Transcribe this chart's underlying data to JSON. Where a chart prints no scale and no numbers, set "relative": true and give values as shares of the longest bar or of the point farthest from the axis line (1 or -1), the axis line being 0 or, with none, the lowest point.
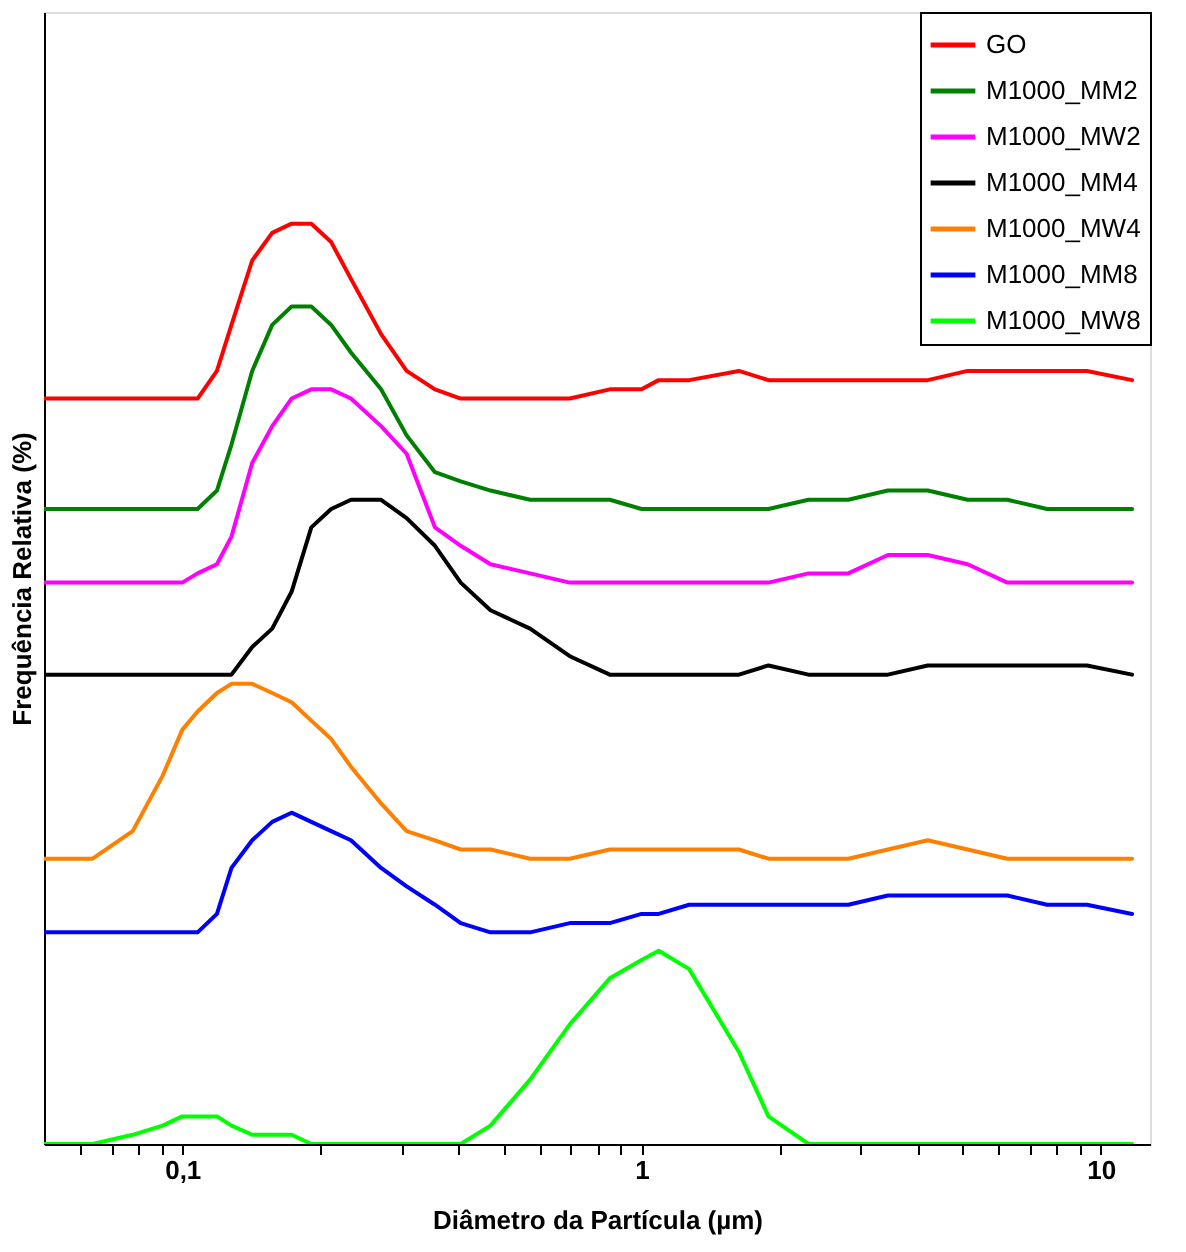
{
  "chart_data": {
    "type": "line",
    "relative": true,
    "xlabel": "Diâmetro da Partícula (µm)",
    "ylabel": "Frequência Relativa (%)",
    "log": "x",
    "grid": false,
    "legend": "top right",
    "tick_labels": "x",
    "line_style": "solid",
    "marker": "none",
    "xlim": [
      0.05,
      12.8
    ],
    "xticks": [
      {
        "value": 0.06,
        "label": null
      },
      {
        "value": 0.07,
        "label": null
      },
      {
        "value": 0.08,
        "label": null
      },
      {
        "value": 0.09,
        "label": null
      },
      {
        "value": 0.1,
        "label": "0,1"
      },
      {
        "value": 0.2,
        "label": null
      },
      {
        "value": 0.3,
        "label": null
      },
      {
        "value": 0.4,
        "label": null
      },
      {
        "value": 0.5,
        "label": null
      },
      {
        "value": 0.6,
        "label": null
      },
      {
        "value": 0.7,
        "label": null
      },
      {
        "value": 0.8,
        "label": null
      },
      {
        "value": 0.9,
        "label": null
      },
      1,
      {
        "value": 2,
        "label": null
      },
      {
        "value": 3,
        "label": null
      },
      {
        "value": 4,
        "label": null
      },
      {
        "value": 5,
        "label": null
      },
      {
        "value": 6,
        "label": null
      },
      {
        "value": 7,
        "label": null
      },
      {
        "value": 8,
        "label": null
      },
      {
        "value": 9,
        "label": null
      },
      10
    ],
    "x": [
      0.0502,
      0.0638,
      0.078,
      0.0906,
      0.1,
      0.108,
      0.119,
      0.128,
      0.142,
      0.157,
      0.173,
      0.191,
      0.211,
      0.233,
      0.271,
      0.308,
      0.355,
      0.404,
      0.469,
      0.572,
      0.698,
      0.853,
      1,
      1.09,
      1.27,
      1.63,
      1.89,
      2.31,
      2.82,
      3.44,
      4.2,
      5.13,
      6.26,
      7.64,
      9.33,
      11.7
    ],
    "series": [
      {
        "name": "GO",
        "color": "#ff0000",
        "values": [
          0.81,
          0.81,
          0.81,
          0.81,
          0.81,
          0.81,
          0.84,
          0.89,
          0.96,
          0.99,
          1,
          1,
          0.98,
          0.94,
          0.88,
          0.84,
          0.82,
          0.81,
          0.81,
          0.81,
          0.81,
          0.82,
          0.82,
          0.83,
          0.83,
          0.84,
          0.83,
          0.83,
          0.83,
          0.83,
          0.83,
          0.84,
          0.84,
          0.84,
          0.84,
          0.83
        ]
      },
      {
        "name": "M1000_MM2",
        "color": "#008000",
        "values": [
          0.69,
          0.69,
          0.69,
          0.69,
          0.69,
          0.69,
          0.71,
          0.76,
          0.84,
          0.89,
          0.91,
          0.91,
          0.89,
          0.86,
          0.82,
          0.77,
          0.73,
          0.72,
          0.71,
          0.7,
          0.7,
          0.7,
          0.69,
          0.69,
          0.69,
          0.69,
          0.69,
          0.7,
          0.7,
          0.71,
          0.71,
          0.7,
          0.7,
          0.69,
          0.69,
          0.69
        ]
      },
      {
        "name": "M1000_MW2",
        "color": "#ff00ff",
        "values": [
          0.61,
          0.61,
          0.61,
          0.61,
          0.61,
          0.62,
          0.63,
          0.66,
          0.74,
          0.78,
          0.81,
          0.82,
          0.82,
          0.81,
          0.78,
          0.75,
          0.67,
          0.65,
          0.63,
          0.62,
          0.61,
          0.61,
          0.61,
          0.61,
          0.61,
          0.61,
          0.61,
          0.62,
          0.62,
          0.64,
          0.64,
          0.63,
          0.61,
          0.61,
          0.61,
          0.61
        ]
      },
      {
        "name": "M1000_MM4",
        "color": "#000000",
        "values": [
          0.51,
          0.51,
          0.51,
          0.51,
          0.51,
          0.51,
          0.51,
          0.51,
          0.54,
          0.56,
          0.6,
          0.67,
          0.69,
          0.7,
          0.7,
          0.68,
          0.65,
          0.61,
          0.58,
          0.56,
          0.53,
          0.51,
          0.51,
          0.51,
          0.51,
          0.51,
          0.52,
          0.51,
          0.51,
          0.51,
          0.52,
          0.52,
          0.52,
          0.52,
          0.52,
          0.51
        ]
      },
      {
        "name": "M1000_MW4",
        "color": "#ff8000",
        "values": [
          0.31,
          0.31,
          0.34,
          0.4,
          0.45,
          0.47,
          0.49,
          0.5,
          0.5,
          0.49,
          0.48,
          0.46,
          0.44,
          0.41,
          0.37,
          0.34,
          0.33,
          0.32,
          0.32,
          0.31,
          0.31,
          0.32,
          0.32,
          0.32,
          0.32,
          0.32,
          0.31,
          0.31,
          0.31,
          0.32,
          0.33,
          0.32,
          0.31,
          0.31,
          0.31,
          0.31
        ]
      },
      {
        "name": "M1000_MM8",
        "color": "#0000ff",
        "values": [
          0.23,
          0.23,
          0.23,
          0.23,
          0.23,
          0.23,
          0.25,
          0.3,
          0.33,
          0.35,
          0.36,
          0.35,
          0.34,
          0.33,
          0.3,
          0.28,
          0.26,
          0.24,
          0.23,
          0.23,
          0.24,
          0.24,
          0.25,
          0.25,
          0.26,
          0.26,
          0.26,
          0.26,
          0.26,
          0.27,
          0.27,
          0.27,
          0.27,
          0.26,
          0.26,
          0.25
        ]
      },
      {
        "name": "M1000_MW8",
        "color": "#00ff00",
        "values": [
          0,
          0,
          0.01,
          0.02,
          0.03,
          0.03,
          0.03,
          0.02,
          0.01,
          0.01,
          0.01,
          0,
          0,
          0,
          0,
          0,
          0,
          0,
          0.02,
          0.07,
          0.13,
          0.18,
          0.2,
          0.21,
          0.19,
          0.1,
          0.03,
          0,
          0,
          0,
          0,
          0,
          0,
          0,
          0,
          0
        ]
      }
    ]
  }
}
